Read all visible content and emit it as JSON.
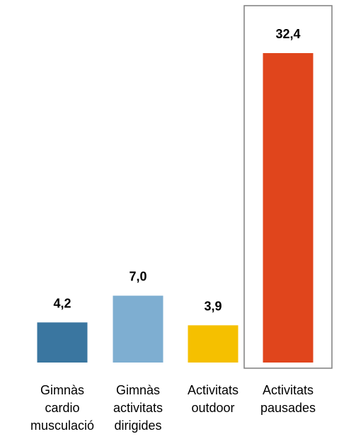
{
  "chart_data": {
    "type": "bar",
    "categories": [
      [
        "Gimnàs",
        "cardio",
        "musculació"
      ],
      [
        "Gimnàs",
        "activitats",
        "dirigides"
      ],
      [
        "Activitats",
        "outdoor"
      ],
      [
        "Activitats",
        "pausades"
      ]
    ],
    "values": [
      4.2,
      7.0,
      3.9,
      32.4
    ],
    "value_labels": [
      "4,2",
      "7,0",
      "3,9",
      "32,4"
    ],
    "colors": [
      "#3a76a0",
      "#7eaed1",
      "#f5c000",
      "#e0451c"
    ],
    "highlighted_index": 3,
    "highlight_color": "#7f7f7f",
    "ylim": [
      0,
      32.4
    ],
    "grid": false,
    "legend": "none",
    "title": "",
    "xlabel": "",
    "ylabel": ""
  }
}
